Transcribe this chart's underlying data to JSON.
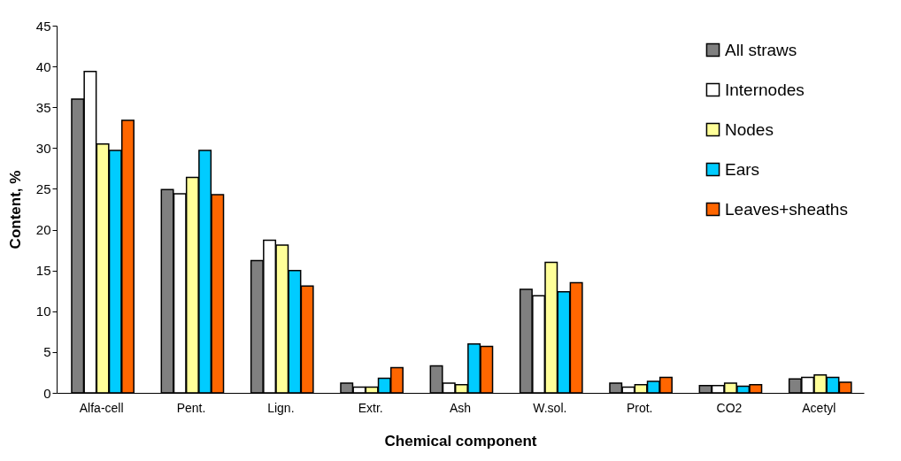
{
  "chart_data": {
    "type": "bar",
    "xlabel": "Chemical component",
    "ylabel": "Content, %",
    "categories": [
      "Alfa-cell",
      "Pent.",
      "Lign.",
      "Extr.",
      "Ash",
      "W.sol.",
      "Prot.",
      "CO2",
      "Acetyl"
    ],
    "series": [
      {
        "name": "All straws",
        "color": "#808080",
        "values": [
          36.0,
          24.9,
          16.2,
          1.2,
          3.3,
          12.7,
          1.2,
          0.9,
          1.7
        ]
      },
      {
        "name": "Internodes",
        "color": "#ffffff",
        "values": [
          39.4,
          24.4,
          18.7,
          0.7,
          1.2,
          11.9,
          0.7,
          0.9,
          1.9
        ]
      },
      {
        "name": "Nodes",
        "color": "#ffff99",
        "values": [
          30.5,
          26.4,
          18.1,
          0.7,
          1.0,
          16.0,
          1.0,
          1.2,
          2.2
        ]
      },
      {
        "name": "Ears",
        "color": "#00ccff",
        "values": [
          29.7,
          29.7,
          15.0,
          1.8,
          6.0,
          12.4,
          1.4,
          0.8,
          1.9
        ]
      },
      {
        "name": "Leaves+sheaths",
        "color": "#ff6600",
        "values": [
          33.4,
          24.3,
          13.1,
          3.1,
          5.7,
          13.5,
          1.9,
          1.0,
          1.3
        ]
      }
    ],
    "ylim": [
      0,
      45
    ],
    "yticks": [
      0,
      5,
      10,
      15,
      20,
      25,
      30,
      35,
      40,
      45
    ],
    "grid": false,
    "legend": "top right"
  }
}
